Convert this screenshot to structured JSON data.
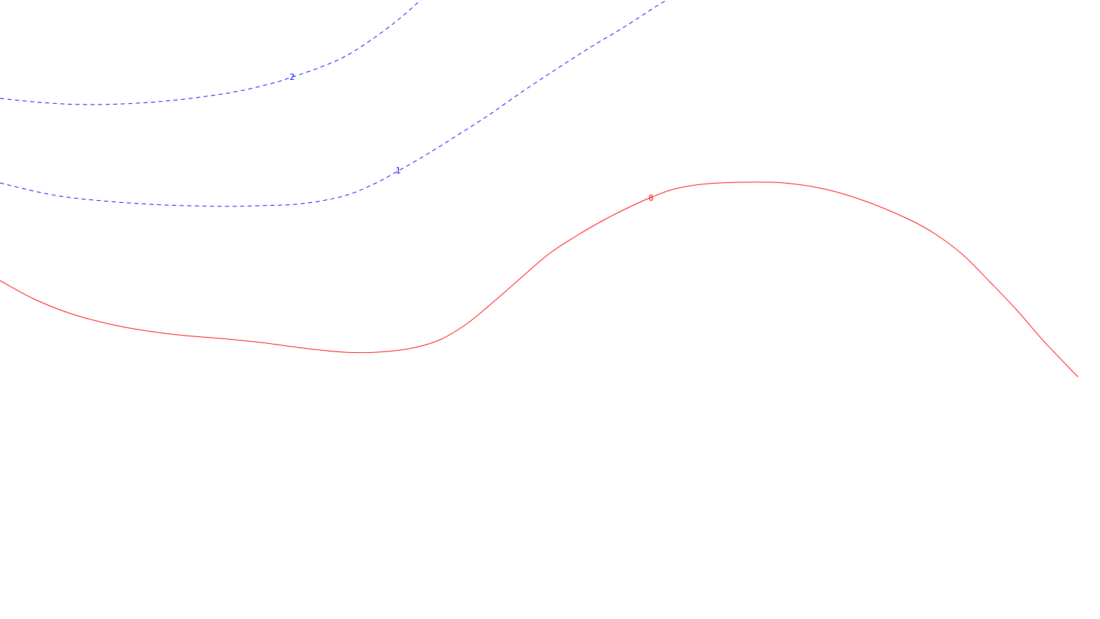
{
  "chart_data": {
    "type": "line",
    "title": "",
    "xlabel": "",
    "ylabel": "",
    "grid": false,
    "legend": "none",
    "series": [
      {
        "level_label": "2",
        "style": "dashed",
        "color": "#0000ff",
        "points": [
          [
            0,
            143
          ],
          [
            60,
            149
          ],
          [
            120,
            152
          ],
          [
            180,
            151
          ],
          [
            240,
            147
          ],
          [
            300,
            140
          ],
          [
            350,
            132
          ],
          [
            400,
            120
          ],
          [
            425,
            112
          ],
          [
            460,
            100
          ],
          [
            500,
            83
          ],
          [
            540,
            58
          ],
          [
            580,
            28
          ],
          [
            612,
            0
          ]
        ]
      },
      {
        "level_label": "1",
        "style": "dashed",
        "color": "#0000ff",
        "points": [
          [
            0,
            266
          ],
          [
            80,
            284
          ],
          [
            160,
            293
          ],
          [
            240,
            298
          ],
          [
            320,
            300
          ],
          [
            380,
            299
          ],
          [
            440,
            296
          ],
          [
            500,
            285
          ],
          [
            545,
            267
          ],
          [
            580,
            248
          ],
          [
            620,
            225
          ],
          [
            660,
            200
          ],
          [
            710,
            168
          ],
          [
            760,
            133
          ],
          [
            810,
            100
          ],
          [
            860,
            68
          ],
          [
            910,
            38
          ],
          [
            950,
            12
          ],
          [
            970,
            0
          ]
        ]
      },
      {
        "level_label": "0",
        "style": "solid",
        "color": "#ff0000",
        "points": [
          [
            0,
            408
          ],
          [
            50,
            435
          ],
          [
            100,
            455
          ],
          [
            150,
            469
          ],
          [
            200,
            479
          ],
          [
            260,
            487
          ],
          [
            320,
            492
          ],
          [
            380,
            498
          ],
          [
            440,
            506
          ],
          [
            500,
            512
          ],
          [
            550,
            512
          ],
          [
            600,
            506
          ],
          [
            640,
            494
          ],
          [
            680,
            470
          ],
          [
            720,
            437
          ],
          [
            760,
            402
          ],
          [
            800,
            368
          ],
          [
            840,
            342
          ],
          [
            880,
            319
          ],
          [
            920,
            299
          ],
          [
            947,
            287
          ],
          [
            980,
            275
          ],
          [
            1020,
            268
          ],
          [
            1080,
            265
          ],
          [
            1140,
            266
          ],
          [
            1200,
            275
          ],
          [
            1260,
            293
          ],
          [
            1320,
            318
          ],
          [
            1360,
            340
          ],
          [
            1400,
            370
          ],
          [
            1440,
            410
          ],
          [
            1480,
            452
          ],
          [
            1520,
            498
          ],
          [
            1568,
            548
          ]
        ]
      }
    ]
  }
}
